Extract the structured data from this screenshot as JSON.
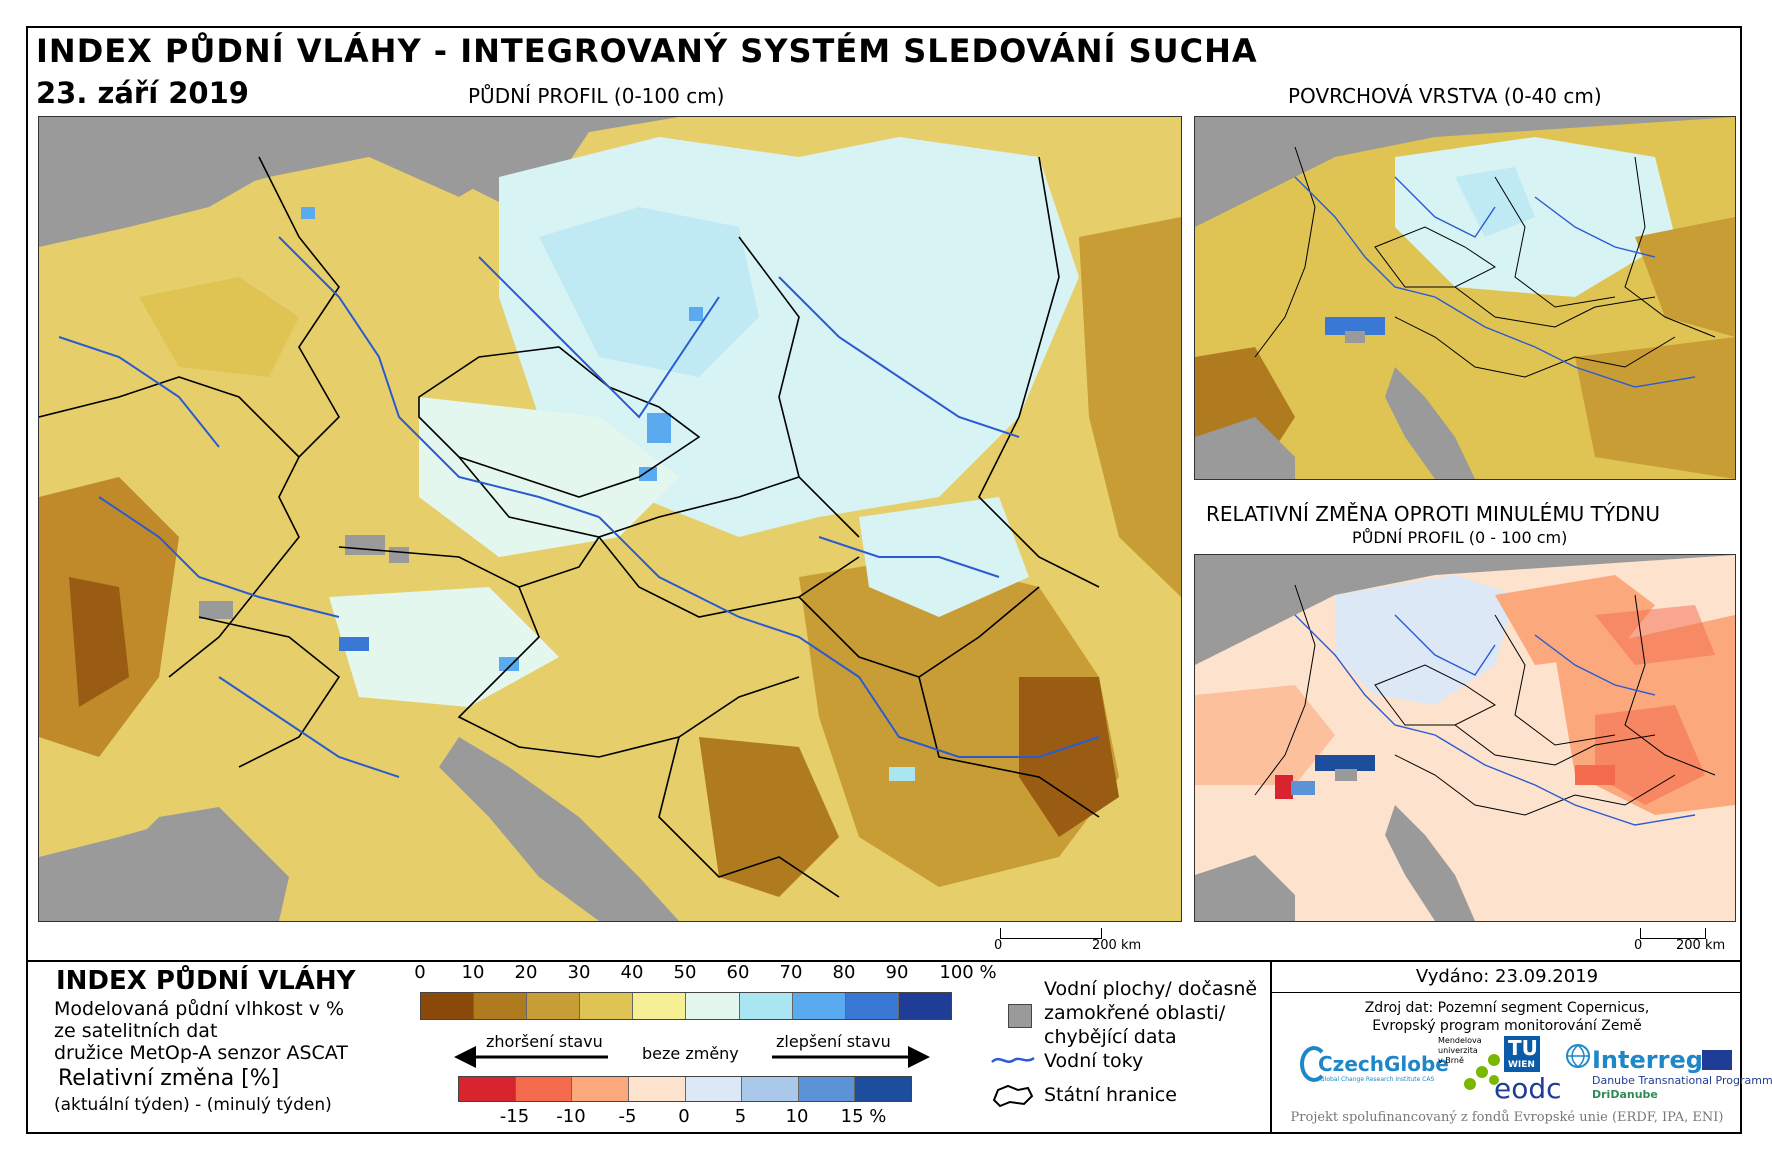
{
  "header": {
    "title": "INDEX PŮDNÍ VLÁHY - INTEGROVANÝ SYSTÉM SLEDOVÁNÍ SUCHA",
    "date": "23. září 2019"
  },
  "maps": {
    "main_caption": "PŮDNÍ PROFIL (0-100 cm)",
    "surface_caption": "POVRCHOVÁ VRSTVA (0-40 cm)",
    "change_caption": "RELATIVNÍ ZMĚNA OPROTI MINULÉMU TÝDNU",
    "change_subcaption": "PŮDNÍ PROFIL (0 - 100 cm)",
    "scale_main": {
      "zero": "0",
      "end": "200 km"
    },
    "scale_small": {
      "zero": "0",
      "end": "200 km"
    }
  },
  "legend": {
    "title": "INDEX PŮDNÍ VLÁHY",
    "desc_line1": "Modelovaná půdní vlhkost v %",
    "desc_line2": "ze satelitních dat",
    "desc_line3": "družice MetOp-A senzor ASCAT",
    "change_title": "Relativní změna [%]",
    "change_desc": "(aktuální týden) - (minulý týden)",
    "index_ticks": [
      "0",
      "10",
      "20",
      "30",
      "40",
      "50",
      "60",
      "70",
      "80",
      "90",
      "100 %"
    ],
    "index_colors": [
      "#8c4a0a",
      "#b07a1e",
      "#c99d35",
      "#dfc453",
      "#f7ef93",
      "#e3f7ee",
      "#a9e6f2",
      "#5aaaef",
      "#3a78d6",
      "#1f3d96"
    ],
    "change_ticks": [
      "-15",
      "-10",
      "-5",
      "0",
      "5",
      "10",
      "15 %"
    ],
    "change_colors": [
      "#d7242e",
      "#f46a4d",
      "#fba87d",
      "#fde3cd",
      "#dce8f5",
      "#aac9ea",
      "#5b93d6",
      "#1d4e9e"
    ],
    "arrow_left": "zhoršení stavu",
    "arrow_mid": "beze změny",
    "arrow_right": "zlepšení stavu",
    "water_label1": "Vodní plochy/ dočasně",
    "water_label2": "zamokřené oblasti/",
    "water_label3": "chybějící data",
    "rivers_label": "Vodní toky",
    "borders_label": "Státní hranice"
  },
  "footer": {
    "issued": "Vydáno: 23.09.2019",
    "source1": "Zdroj dat: Pozemní segment Copernicus,",
    "source2": "Evropský program monitorování Země",
    "logo_czechglobe": "CzechGlobe",
    "logo_czechglobe_sub": "Global Change Research Institute CAS",
    "logo_mendel1": "Mendelova",
    "logo_mendel2": "univerzita",
    "logo_mendel3": "v Brně",
    "logo_tu": "TU",
    "logo_tu_sub": "WIEN",
    "logo_eodc": "eodc",
    "logo_interreg": "Interreg",
    "logo_interreg_sub1": "Danube Transnational Programme",
    "logo_interreg_sub2": "DriDanube",
    "funding": "Projekt spolufinancovaný z fondů Evropské unie (ERDF, IPA, ENI)"
  }
}
